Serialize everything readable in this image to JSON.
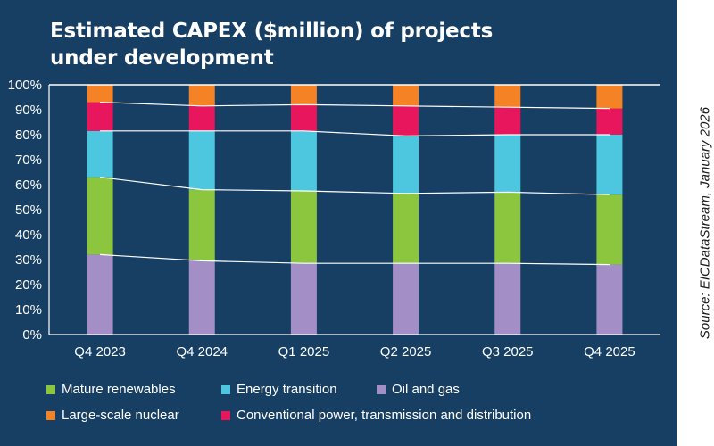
{
  "title_line1": "Estimated CAPEX ($million) of projects",
  "title_line2": "under development",
  "source": "Source: EICDataStream, January 2026",
  "colors": {
    "background": "#173f63",
    "oil_and_gas": "#a48ec6",
    "mature_renewables": "#8cc63f",
    "energy_transition": "#4cc7df",
    "conventional_power": "#e8175d",
    "large_scale_nuclear": "#f58225"
  },
  "chart_data": {
    "type": "bar",
    "stacked": true,
    "categories": [
      "Q4 2023",
      "Q4 2024",
      "Q1 2025",
      "Q2 2025",
      "Q3 2025",
      "Q4 2025"
    ],
    "y_ticks": [
      "0%",
      "10%",
      "20%",
      "30%",
      "40%",
      "50%",
      "60%",
      "70%",
      "80%",
      "90%",
      "100%"
    ],
    "ylim": [
      0,
      100
    ],
    "series": [
      {
        "key": "oil_and_gas",
        "name": "Oil and gas",
        "values": [
          32,
          29.5,
          28.5,
          28.5,
          28.5,
          28
        ]
      },
      {
        "key": "mature_renewables",
        "name": "Mature renewables",
        "values": [
          31,
          28.5,
          29,
          28,
          28.5,
          28
        ]
      },
      {
        "key": "energy_transition",
        "name": "Energy transition",
        "values": [
          18.5,
          23.5,
          24,
          23,
          23,
          24
        ]
      },
      {
        "key": "conventional_power",
        "name": "Conventional power, transmission and distribution",
        "values": [
          11.5,
          10,
          10.5,
          12,
          11,
          10.5
        ]
      },
      {
        "key": "large_scale_nuclear",
        "name": "Large-scale nuclear",
        "values": [
          7,
          8.5,
          8,
          8.5,
          9,
          9.5
        ]
      }
    ]
  },
  "legend": [
    {
      "name": "Mature renewables",
      "key": "mature_renewables"
    },
    {
      "name": "Energy transition",
      "key": "energy_transition"
    },
    {
      "name": "Oil and gas",
      "key": "oil_and_gas"
    },
    {
      "name": "Large-scale nuclear",
      "key": "large_scale_nuclear"
    },
    {
      "name": "Conventional power, transmission and distribution",
      "key": "conventional_power"
    }
  ]
}
